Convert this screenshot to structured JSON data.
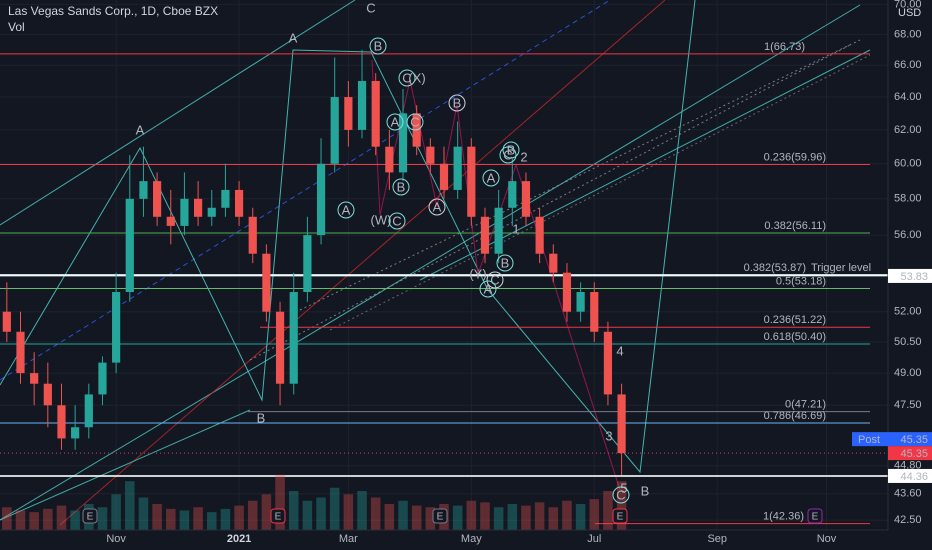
{
  "chart_data": {
    "type": "candlestick",
    "title": "Las Vegas Sands Corp., 1D, Cboe BZX",
    "volume_label": "Vol",
    "currency": "USD",
    "log_scale": true,
    "grid": true,
    "up_color": "#26a69a",
    "down_color": "#ef5350",
    "categories": [
      null,
      null,
      null,
      null,
      null,
      null,
      null,
      null,
      "Nov",
      null,
      null,
      null,
      null,
      null,
      null,
      null,
      null,
      "2021",
      null,
      null,
      null,
      null,
      null,
      null,
      null,
      "Mar",
      null,
      null,
      null,
      null,
      null,
      null,
      null,
      null,
      "May",
      null,
      null,
      null,
      null,
      null,
      null,
      null,
      null,
      "Jul",
      null,
      null,
      null,
      null,
      null,
      null,
      null,
      null,
      "Sep",
      null,
      null,
      null,
      null,
      null,
      null,
      null,
      "Nov",
      null,
      null,
      null,
      null
    ],
    "open": [
      52,
      51,
      49,
      48.5,
      47.5,
      46,
      46.5,
      48,
      49.5,
      53,
      58,
      59,
      57,
      56.5,
      58,
      57,
      57.5,
      58.5,
      57,
      55,
      52,
      48.5,
      53,
      56,
      60,
      64,
      62,
      65,
      61,
      59.5,
      63,
      61,
      60,
      58.5,
      61,
      57,
      55,
      57.5,
      59,
      57,
      55,
      54,
      52,
      53,
      51,
      48,
      null,
      null,
      null,
      null,
      null,
      null,
      null,
      null,
      null,
      null,
      null,
      null,
      null,
      null,
      null,
      null,
      null,
      null,
      null
    ],
    "high": [
      53.5,
      52,
      50,
      49.5,
      48.5,
      47.5,
      48.5,
      49.8,
      54,
      60.5,
      61,
      59.5,
      58.5,
      59.5,
      59,
      58.5,
      60,
      59,
      57.5,
      55.5,
      52.5,
      54,
      57,
      61.5,
      66.5,
      65,
      67,
      65.5,
      62,
      64.5,
      63.5,
      61.5,
      61,
      62.5,
      61.5,
      57.5,
      58.5,
      60.3,
      59.5,
      57.5,
      55.5,
      54.5,
      53.5,
      53.5,
      51.5,
      48.5,
      null,
      null,
      null,
      null,
      null,
      null,
      null,
      null,
      null,
      null,
      null,
      null,
      null,
      null,
      null,
      null,
      null,
      null,
      null
    ],
    "low": [
      50.5,
      48.5,
      47.5,
      46.5,
      45.5,
      45.5,
      46,
      47.5,
      49,
      52.5,
      57,
      56.5,
      55.5,
      56,
      56.5,
      56.5,
      57,
      56.5,
      54.5,
      51.5,
      47.5,
      48,
      52.5,
      55.5,
      59.5,
      61,
      61.5,
      60.5,
      58.5,
      59,
      60.5,
      59.5,
      58,
      58,
      56.5,
      54.5,
      54.5,
      56.5,
      56.5,
      54.5,
      53.5,
      51.5,
      51.5,
      50.5,
      47.5,
      44.4,
      null,
      null,
      null,
      null,
      null,
      null,
      null,
      null,
      null,
      null,
      null,
      null,
      null,
      null,
      null,
      null,
      null,
      null,
      null
    ],
    "close": [
      51,
      49,
      48.5,
      47.5,
      46,
      46.5,
      48,
      49.5,
      53,
      58,
      59,
      57,
      56.5,
      58,
      57,
      57.5,
      58.5,
      57,
      55,
      52,
      48.5,
      53,
      56,
      60,
      64,
      62,
      65,
      61,
      59.5,
      63,
      61,
      60,
      58.5,
      61,
      57,
      55,
      57.5,
      59,
      57,
      55,
      54,
      52,
      53,
      51,
      48,
      45.35,
      null,
      null,
      null,
      null,
      null,
      null,
      null,
      null,
      null,
      null,
      null,
      null,
      null,
      null,
      null,
      null,
      null,
      null,
      null
    ],
    "volume": [
      14,
      12,
      11,
      13,
      15,
      12,
      16,
      14,
      22,
      30,
      20,
      16,
      13,
      12,
      14,
      11,
      13,
      15,
      18,
      22,
      34,
      24,
      18,
      20,
      26,
      22,
      24,
      20,
      16,
      18,
      15,
      14,
      16,
      15,
      18,
      17,
      14,
      16,
      15,
      17,
      14,
      18,
      16,
      19,
      24,
      30,
      null,
      null,
      null,
      null,
      null,
      null,
      null,
      null,
      null,
      null,
      null,
      null,
      null,
      null,
      null,
      null,
      null,
      null,
      null
    ],
    "volume_lim": [
      0,
      80
    ],
    "ylim": [
      42.1,
      70.3
    ],
    "yticks": [
      {
        "value": 70,
        "label": "70.00"
      },
      {
        "value": 68,
        "label": "68.00"
      },
      {
        "value": 66,
        "label": "66.00"
      },
      {
        "value": 64,
        "label": "64.00"
      },
      {
        "value": 62,
        "label": "62.00"
      },
      {
        "value": 60,
        "label": "60.00"
      },
      {
        "value": 58,
        "label": "58.00"
      },
      {
        "value": 56,
        "label": "56.00"
      },
      {
        "value": 52,
        "label": "52.00"
      },
      {
        "value": 50.5,
        "label": "50.50"
      },
      {
        "value": 49,
        "label": "49.00"
      },
      {
        "value": 47.5,
        "label": "47.50"
      },
      {
        "value": 44.8,
        "label": "44.80"
      },
      {
        "value": 43.6,
        "label": "43.60"
      },
      {
        "value": 42.5,
        "label": "42.50"
      }
    ],
    "levels": [
      {
        "label": "1(66.73)",
        "value": 66.73,
        "color": "#f23645"
      },
      {
        "label": "0.236(59.96)",
        "value": 59.96,
        "color": "#f23645"
      },
      {
        "label": "0.382(56.11)",
        "value": 56.11,
        "color": "#4caf50"
      },
      {
        "label": "0.382(53.87)",
        "value": 53.87,
        "color": "#e0f7fa"
      },
      {
        "label": "0.5(53.18)",
        "value": 53.18,
        "color": "#66bb6a"
      },
      {
        "label": "0.236(51.22)",
        "value": 51.22,
        "color": "#f23645"
      },
      {
        "label": "0.618(50.40)",
        "value": 50.4,
        "color": "#26a69a"
      },
      {
        "label": "0(47.21)",
        "value": 47.21,
        "color": "#787b86"
      },
      {
        "label": "0.786(46.69)",
        "value": 46.69,
        "color": "#64b5f6"
      },
      {
        "label": "1(42.36)",
        "value": 42.36,
        "color": "#f23645"
      }
    ],
    "trigger_label": "Trigger level",
    "badges": [
      {
        "value": 53.83,
        "bg": "#ffffff",
        "fg": "#131722"
      },
      {
        "tag": "Post",
        "value": 45.35,
        "bg": "#2962ff",
        "fg": "#ffffff"
      },
      {
        "value": 45.35,
        "bg": "#f23645",
        "fg": "#ffffff"
      },
      {
        "value": 44.36,
        "bg": "#ffffff",
        "fg": "#131722"
      }
    ],
    "wave_labels": [
      "A",
      "C",
      "B",
      "C",
      "(X)",
      "B",
      "A",
      "A",
      "C",
      "B",
      "A",
      "(W)",
      "C",
      "A",
      "A",
      "B",
      "C",
      "2",
      "1",
      "B",
      "(Y)",
      "C",
      "A",
      "B",
      "4",
      "3",
      "5",
      "C",
      "B"
    ],
    "earnings": [
      "E",
      "E",
      "E",
      "E",
      "E"
    ]
  }
}
